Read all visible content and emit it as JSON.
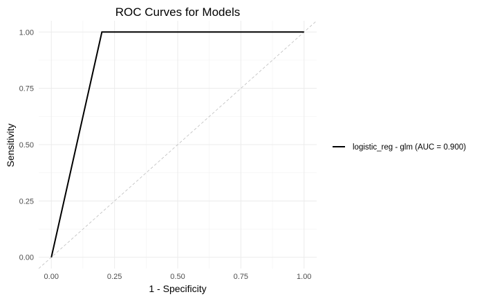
{
  "chart_data": {
    "type": "line",
    "title": "ROC Curves for Models",
    "xlabel": "1 - Specificity",
    "ylabel": "Sensitivity",
    "xlim": [
      -0.05,
      1.05
    ],
    "ylim": [
      -0.05,
      1.05
    ],
    "x_ticks": [
      "0.00",
      "0.25",
      "0.50",
      "0.75",
      "1.00"
    ],
    "y_ticks": [
      "0.00",
      "0.25",
      "0.50",
      "0.75",
      "1.00"
    ],
    "grid": true,
    "legend_position": "right",
    "series": [
      {
        "name": "logistic_reg - glm (AUC = 0.900)",
        "color": "#000000",
        "x": [
          0.0,
          0.2,
          1.0
        ],
        "y": [
          0.0,
          1.0,
          1.0
        ]
      }
    ],
    "reference_line": {
      "x": [
        0,
        1
      ],
      "y": [
        0,
        1
      ],
      "style": "dashed",
      "color": "#bdbdbd"
    }
  }
}
